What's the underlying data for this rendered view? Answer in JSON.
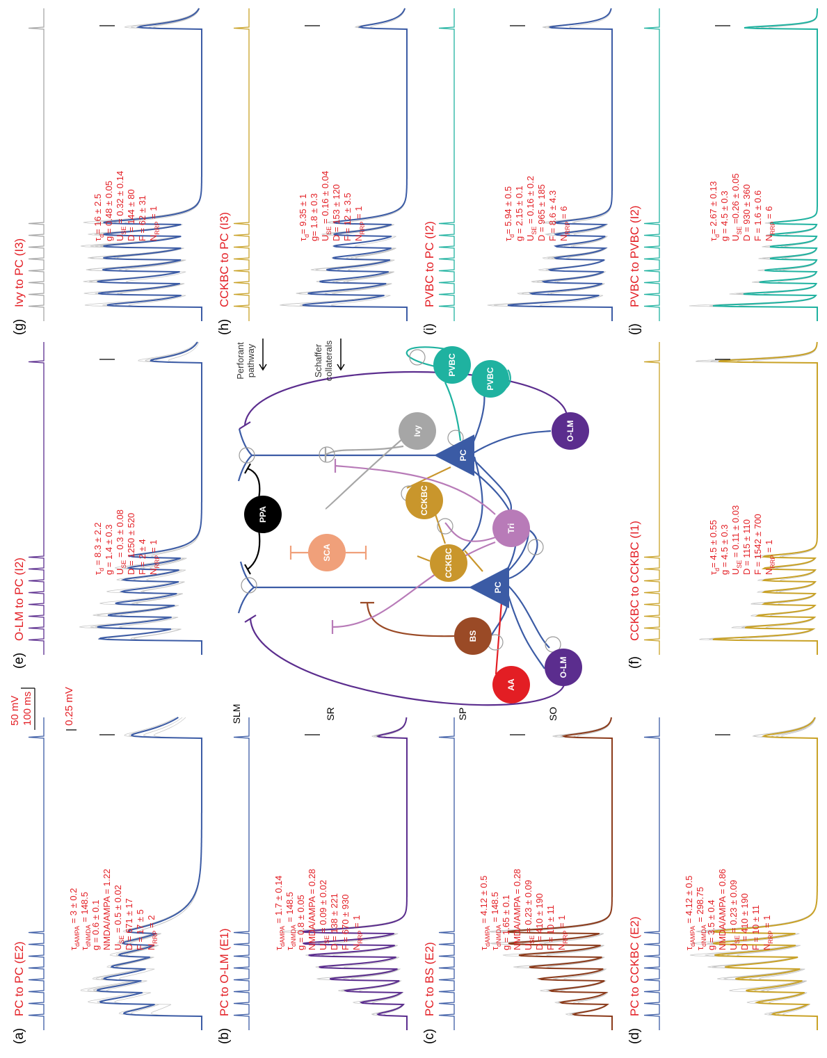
{
  "panels": [
    {
      "label": "(a)",
      "title": "PC to PC (E2)",
      "stim_color": "#3b5ba5",
      "trace_color": "#3b5ba5",
      "params": [
        {
          "sym": "τ",
          "sub": "dAMPA",
          "rest": " = 3 ± 0.2"
        },
        {
          "sym": "τ",
          "sub": "dNMDA",
          "rest": " = 148.5"
        },
        "g = 0.6 ± 0.1",
        "NMDA/AMPA = 1.22",
        {
          "sym": "U",
          "sub": "SE",
          "rest": " = 0.5 ± 0.02"
        },
        "D = 671 ± 17",
        "F = 17 ± 5",
        {
          "sym": "N",
          "sub": "RRP",
          "rest": " = 2"
        }
      ]
    },
    {
      "label": "(b)",
      "title": "PC to O-LM (E1)",
      "stim_color": "#3b5ba5",
      "trace_color": "#5b2d8e",
      "params": [
        {
          "sym": "τ",
          "sub": "dAMPA",
          "rest": " = 1.7 ± 0.14"
        },
        {
          "sym": "τ",
          "sub": "dNMDA",
          "rest": " = 148.5"
        },
        "g = 0.8 ± 0.05",
        "NMDA/AMPA = 0.28",
        {
          "sym": "U",
          "sub": "SE",
          "rest": " = 0.09 ± 0.02"
        },
        "D = 138 ± 221",
        "F = 670 ± 930",
        {
          "sym": "N",
          "sub": "RRP",
          "rest": " = 1"
        }
      ]
    },
    {
      "label": "(c)",
      "title": "PC to BS (E2)",
      "stim_color": "#3b5ba5",
      "trace_color": "#8b3a1a",
      "params": [
        {
          "sym": "τ",
          "sub": "dAMPA",
          "rest": " = 4.12 ± 0.5"
        },
        {
          "sym": "τ",
          "sub": "dNMDA",
          "rest": " = 148.5"
        },
        "g = 1.65 ± 0.1",
        "NMDA/AMPA = 0.28",
        {
          "sym": "U",
          "sub": "SE",
          "rest": " = 0.23 ± 0.09"
        },
        "D = 410 ± 190",
        "F = 10 ± 11",
        {
          "sym": "N",
          "sub": "RRP",
          "rest": " = 1"
        }
      ]
    },
    {
      "label": "(d)",
      "title": "PC to CCKBC (E2)",
      "stim_color": "#3b5ba5",
      "trace_color": "#c9a227",
      "params": [
        {
          "sym": "τ",
          "sub": "dAMPA",
          "rest": " = 4.12 ± 0.5"
        },
        {
          "sym": "τ",
          "sub": "dNMDA",
          "rest": " = 298.75"
        },
        "g = 3.5 ± 0.4",
        "NMDA/AMPA = 0.86",
        {
          "sym": "U",
          "sub": "SE",
          "rest": " = 0.23 ± 0.09"
        },
        "D = 410 ± 190",
        "F = 10 ± 11",
        {
          "sym": "N",
          "sub": "RRP",
          "rest": " = 1"
        }
      ]
    },
    {
      "label": "(e)",
      "title": "O-LM to PC (I2)",
      "stim_color": "#5b2d8e",
      "trace_color": "#3b5ba5",
      "params": [
        {
          "sym": "τ",
          "sub": "d",
          "rest": " = 8.3 ± 2.2"
        },
        "g = 1.4 ± 0.3",
        {
          "sym": "U",
          "sub": "SE",
          "rest": " = 0.3 ± 0.08"
        },
        "D = 1250 ± 520",
        "F = 2 ± 4",
        {
          "sym": "N",
          "sub": "RRP",
          "rest": " = 1"
        }
      ]
    },
    {
      "label": "(f)",
      "title": "CCKBC to CCKBC (I1)",
      "stim_color": "#c9a227",
      "trace_color": "#c9a227",
      "params": [
        {
          "sym": "τ",
          "sub": "d",
          "rest": "= 4.5 ± 0.55"
        },
        "g = 4.5 ± 0.3",
        {
          "sym": "U",
          "sub": "SE",
          "rest": " = 0.11 ± 0.03"
        },
        "D = 115 ± 110",
        "F = 1542 ± 700",
        {
          "sym": "N",
          "sub": "RRP",
          "rest": " = 1"
        }
      ]
    },
    {
      "label": "(g)",
      "title": "Ivy to PC (I3)",
      "stim_color": "#a6a6a6",
      "trace_color": "#3b5ba5",
      "params": [
        {
          "sym": "τ",
          "sub": "d",
          "rest": "= 16 ± 2.5"
        },
        "g = 0.48 ± 0.05",
        {
          "sym": "U",
          "sub": "SE",
          "rest": " = 0.32 ± 0.14"
        },
        "D = 144 ± 80",
        "F = 62 ± 31",
        {
          "sym": "N",
          "sub": "RRP",
          "rest": " = 1"
        }
      ]
    },
    {
      "label": "(h)",
      "title": "CCKBC to PC (I3)",
      "stim_color": "#c9a227",
      "trace_color": "#3b5ba5",
      "params": [
        {
          "sym": "τ",
          "sub": "d",
          "rest": "= 9.35 ± 1"
        },
        "g= 1.8 ± 0.3",
        {
          "sym": "U",
          "sub": "SE",
          "rest": " = 0.16 ± 0.04"
        },
        "D = 153 ± 120",
        "F = 12 ± 3.5",
        {
          "sym": "N",
          "sub": "RRP",
          "rest": " = 1"
        }
      ]
    },
    {
      "label": "(i)",
      "title": "PVBC to PC (I2)",
      "stim_color": "#1fb2a0",
      "trace_color": "#3b5ba5",
      "params": [
        {
          "sym": "τ",
          "sub": "d",
          "rest": "= 5.94 ± 0.5"
        },
        "g = 2.15 ± 0.1",
        {
          "sym": "U",
          "sub": "SE",
          "rest": " = 0.16 ± 0.2"
        },
        "D = 965 ± 185",
        "F = 8.6 ± 4.3",
        {
          "sym": "N",
          "sub": "RRP",
          "rest": " = 6"
        }
      ]
    },
    {
      "label": "(j)",
      "title": "PVBC to PVBC (I2)",
      "stim_color": "#1fb2a0",
      "trace_color": "#1fb2a0",
      "params": [
        {
          "sym": "τ",
          "sub": "d",
          "rest": "= 2.67 ± 0.13"
        },
        "g = 4.5 ± 0.3",
        {
          "sym": "U",
          "sub": "SE",
          "rest": " =0.26 ± 0.05"
        },
        "D = 930 ± 360",
        "F = 1.6 ± 0.6",
        {
          "sym": "N",
          "sub": "RRP",
          "rest": " = 6"
        }
      ]
    }
  ],
  "scale_bar": {
    "voltage": "50 mV",
    "time": "100 ms",
    "response": "0.25 mV"
  },
  "diagram": {
    "layers": [
      "SLM",
      "SR",
      "SP",
      "SO"
    ],
    "pathways": [
      [
        "Perforant",
        "pathway"
      ],
      [
        "Schaffer",
        "collaterals"
      ]
    ],
    "nodes": [
      "PPA",
      "SCA",
      "CCKBC",
      "CCKBC",
      "BS",
      "AA",
      "O-LM",
      "Tri",
      "Ivy",
      "PVBC",
      "PVBC",
      "O-LM",
      "PC",
      "PC"
    ]
  }
}
